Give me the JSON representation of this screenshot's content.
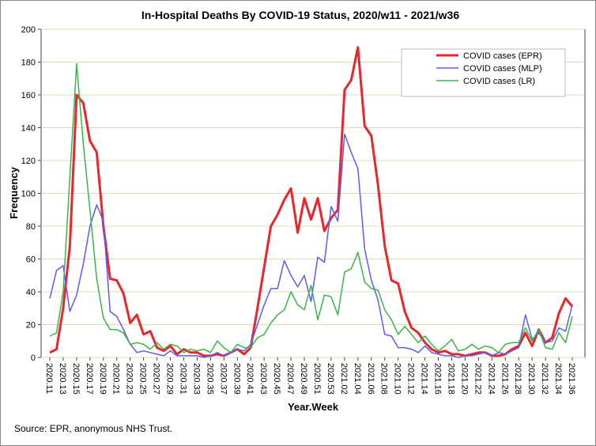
{
  "chart_data": {
    "type": "line",
    "title": "In-Hospital Deaths By COVID-19 Status, 2020/w11 - 2021/w36",
    "x_label": "Year.Week",
    "y_label": "Frequency",
    "source": "Source: EPR, anonymous NHS Trust.",
    "categories": [
      "2020.11",
      null,
      "2020.13",
      null,
      "2020.15",
      null,
      "2020.17",
      null,
      "2020.19",
      null,
      "2020.21",
      null,
      "2020.23",
      null,
      "2020.25",
      null,
      "2020.27",
      null,
      "2020.29",
      null,
      "2020.31",
      null,
      "2020.33",
      null,
      "2020.35",
      null,
      "2020.37",
      null,
      "2020.39",
      null,
      "2020.41",
      null,
      "2020.43",
      null,
      "2020.45",
      null,
      "2020.47",
      null,
      "2020.49",
      null,
      "2020.51",
      null,
      "2020.53",
      null,
      "2021.02",
      null,
      "2021.04",
      null,
      "2021.06",
      null,
      "2021.08",
      null,
      "2021.10",
      null,
      "2021.12",
      null,
      "2021.14",
      null,
      "2021.16",
      null,
      "2021.18",
      null,
      "2021.20",
      null,
      "2021.22",
      null,
      "2021.24",
      null,
      "2021.26",
      null,
      "2021.28",
      null,
      "2021.30",
      null,
      "2021.32",
      null,
      "2021.34",
      null,
      "2021.36"
    ],
    "series": [
      {
        "name": "COVID cases (EPR)",
        "color": "#e8262b",
        "width": 3,
        "values": [
          3,
          5,
          30,
          68,
          160,
          155,
          132,
          125,
          80,
          48,
          47,
          39,
          21,
          26,
          14,
          16,
          6,
          4,
          7,
          2,
          5,
          3,
          3,
          1,
          1,
          2,
          1,
          3,
          5,
          2,
          6,
          30,
          55,
          80,
          87,
          96,
          103,
          76,
          97,
          84,
          97,
          77,
          85,
          90,
          163,
          169,
          189,
          141,
          135,
          105,
          68,
          47,
          45,
          28,
          18,
          15,
          9,
          5,
          3,
          4,
          2,
          2,
          1,
          2,
          3,
          3,
          1,
          1,
          2,
          5,
          7,
          15,
          7,
          17,
          9,
          12,
          27,
          36,
          31
        ]
      },
      {
        "name": "COVID cases (MLP)",
        "color": "#5b5bff",
        "width": 1.5,
        "values": [
          36,
          53,
          56,
          28,
          38,
          57,
          80,
          93,
          83,
          28,
          25,
          17,
          8,
          3,
          4,
          3,
          2,
          1,
          4,
          1,
          1,
          1,
          1,
          0,
          1,
          3,
          1,
          3,
          5,
          4,
          8,
          20,
          32,
          42,
          42,
          59,
          50,
          43,
          50,
          34,
          61,
          58,
          92,
          83,
          136,
          125,
          115,
          66,
          47,
          35,
          14,
          13,
          6,
          6,
          5,
          3,
          7,
          3,
          2,
          1,
          1,
          0,
          1,
          1,
          2,
          3,
          1,
          3,
          2,
          4,
          6,
          26,
          11,
          15,
          9,
          10,
          18,
          16,
          32
        ]
      },
      {
        "name": "COVID cases (LR)",
        "color": "#3cb44b",
        "width": 1.5,
        "values": [
          13,
          15,
          40,
          110,
          179,
          130,
          90,
          48,
          24,
          17,
          17,
          15,
          8,
          9,
          8,
          5,
          9,
          5,
          8,
          7,
          3,
          5,
          4,
          5,
          3,
          10,
          6,
          3,
          8,
          6,
          6,
          12,
          14,
          21,
          26,
          29,
          40,
          32,
          29,
          44,
          23,
          38,
          37,
          26,
          52,
          54,
          64,
          46,
          42,
          41,
          29,
          23,
          14,
          19,
          14,
          9,
          13,
          8,
          4,
          7,
          11,
          4,
          5,
          8,
          5,
          7,
          6,
          3,
          8,
          9,
          9,
          18,
          10,
          17,
          6,
          5,
          15,
          9,
          25
        ]
      }
    ],
    "ylim": [
      0,
      200
    ],
    "yticks": [
      0,
      20,
      40,
      60,
      80,
      100,
      120,
      140,
      160,
      180,
      200
    ],
    "grid": true,
    "legend": "upper right"
  }
}
